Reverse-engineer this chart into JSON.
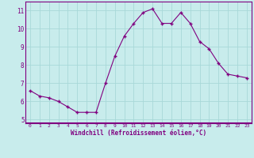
{
  "x": [
    0,
    1,
    2,
    3,
    4,
    5,
    6,
    7,
    8,
    9,
    10,
    11,
    12,
    13,
    14,
    15,
    16,
    17,
    18,
    19,
    20,
    21,
    22,
    23
  ],
  "y": [
    6.6,
    6.3,
    6.2,
    6.0,
    5.7,
    5.4,
    5.4,
    5.4,
    7.0,
    8.5,
    9.6,
    10.3,
    10.9,
    11.1,
    10.3,
    10.3,
    10.9,
    10.3,
    9.3,
    8.9,
    8.1,
    7.5,
    7.4,
    7.3
  ],
  "line_color": "#800080",
  "marker": "+",
  "marker_size": 3.5,
  "bg_color": "#c8ecec",
  "grid_color": "#a8d8d8",
  "xlabel": "Windchill (Refroidissement éolien,°C)",
  "tick_color": "#800080",
  "ylim": [
    4.8,
    11.5
  ],
  "xlim": [
    -0.5,
    23.5
  ],
  "yticks": [
    5,
    6,
    7,
    8,
    9,
    10,
    11
  ],
  "xticks": [
    0,
    1,
    2,
    3,
    4,
    5,
    6,
    7,
    8,
    9,
    10,
    11,
    12,
    13,
    14,
    15,
    16,
    17,
    18,
    19,
    20,
    21,
    22,
    23
  ]
}
